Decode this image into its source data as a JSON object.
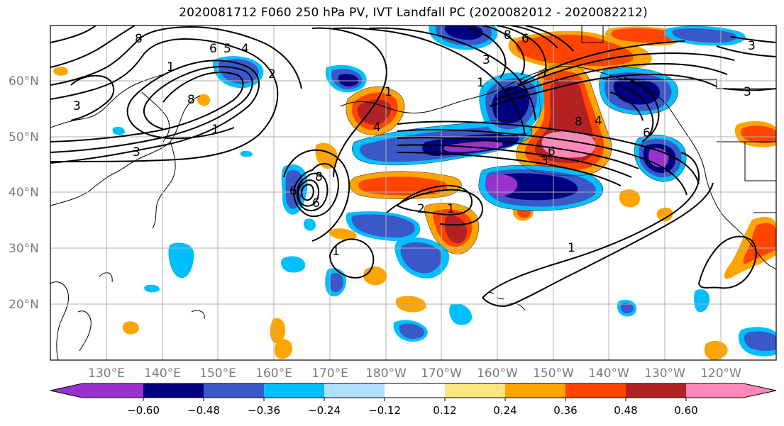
{
  "title": "2020081712 F060 250 hPa PV, IVT Landfall PC (2020082012 - 2020082212)",
  "lat_labels": [
    "60°N",
    "50°N",
    "40°N",
    "30°N",
    "20°N"
  ],
  "lon_labels": [
    "130°E",
    "140°E",
    "150°E",
    "160°E",
    "170°E",
    "180°W",
    "170°W",
    "160°W",
    "150°W",
    "140°W",
    "130°W",
    "120°W"
  ],
  "colorbar": {
    "ticks": [
      "−0.60",
      "−0.48",
      "−0.36",
      "−0.24",
      "−0.12",
      "0.12",
      "0.24",
      "0.36",
      "0.48",
      "0.60"
    ],
    "colors": [
      "#9932cc",
      "#000080",
      "#3a58c8",
      "#00bfff",
      "#b0e2ff",
      "#ffffff",
      "#ffe680",
      "#ffa500",
      "#ff4500",
      "#b22222",
      "#ff88b8"
    ]
  },
  "contour_labels": [
    "8",
    "6",
    "5",
    "4",
    "1",
    "3",
    "3",
    "8",
    "1",
    "2",
    "6",
    "8",
    "4",
    "6",
    "2",
    "1",
    "1",
    "8",
    "6",
    "3",
    "1",
    "6",
    "3",
    "8",
    "6",
    "4",
    "3",
    "3",
    "1",
    "1"
  ]
}
